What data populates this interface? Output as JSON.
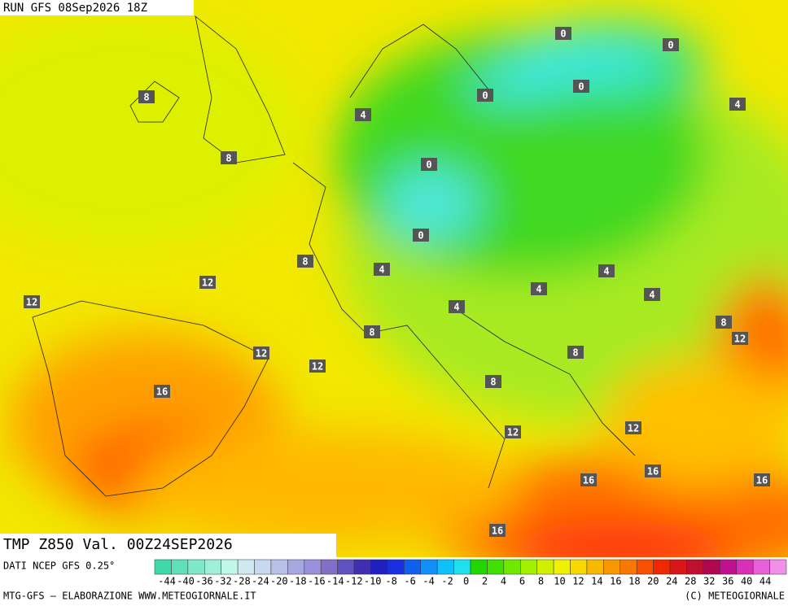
{
  "header": {
    "run": "RUN GFS 08Sep2026 18Z",
    "field": "TMP Z850 Val. 00Z24SEP2026"
  },
  "map": {
    "contour_labels": [
      0,
      0,
      0,
      0,
      8,
      4,
      4,
      8,
      0,
      0,
      8,
      12,
      4,
      4,
      4,
      4,
      12,
      4,
      8,
      12,
      8,
      8,
      12,
      12,
      8,
      16,
      12,
      12,
      16,
      16,
      16,
      16
    ]
  },
  "legend": {
    "source": "DATI NCEP GFS 0.25°",
    "ticks": [
      "-44",
      "-40",
      "-36",
      "-32",
      "-28",
      "-24",
      "-20",
      "-18",
      "-16",
      "-14",
      "-12",
      "-10",
      "-8",
      "-6",
      "-4",
      "-2",
      "0",
      "2",
      "4",
      "6",
      "8",
      "10",
      "12",
      "14",
      "16",
      "18",
      "20",
      "24",
      "28",
      "32",
      "36",
      "40",
      "44"
    ],
    "colors": [
      "#40d8a8",
      "#60e0b8",
      "#80e8c8",
      "#a0f0d8",
      "#c0f8e8",
      "#d0e8f0",
      "#c8d8f0",
      "#b8c0e8",
      "#a8a8e0",
      "#9890d8",
      "#8070c8",
      "#6050c0",
      "#4030b0",
      "#2020c0",
      "#1830e0",
      "#1060f0",
      "#1090f8",
      "#10c0f8",
      "#20e0f0",
      "#20d800",
      "#40e000",
      "#70e800",
      "#a0f000",
      "#d0f000",
      "#f0f000",
      "#f8d800",
      "#f8b800",
      "#f89800",
      "#f87800",
      "#f85000",
      "#f02800",
      "#d81818",
      "#c01030",
      "#b00850",
      "#c01090",
      "#d830b8",
      "#e860d8",
      "#f090e8"
    ],
    "footer_left": "MTG-GFS — ELABORAZIONE WWW.METEOGIORNALE.IT",
    "footer_right": "(C) METEOGIORNALE"
  }
}
